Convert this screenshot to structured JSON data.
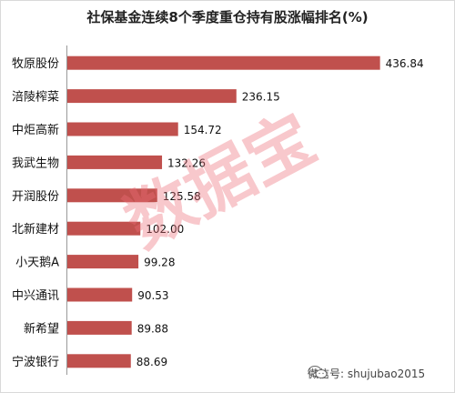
{
  "chart_data": {
    "type": "bar",
    "orientation": "horizontal",
    "title": "社保基金连续8个季度重仓持有股涨幅排名(%)",
    "categories": [
      "牧原股份",
      "涪陵榨菜",
      "中炬高新",
      "我武生物",
      "开润股份",
      "北新建材",
      "小天鹅A",
      "中兴通讯",
      "新希望",
      "宁波银行"
    ],
    "values": [
      436.84,
      236.15,
      154.72,
      132.26,
      125.58,
      102.0,
      99.28,
      90.53,
      89.88,
      88.69
    ],
    "value_labels": [
      "436.84",
      "236.15",
      "154.72",
      "132.26",
      "125.58",
      "102.00",
      "99.28",
      "90.53",
      "89.88",
      "88.69"
    ],
    "xlim": [
      0,
      450
    ],
    "grid": false,
    "bar_color": "#c0504d"
  },
  "watermark": "数据宝",
  "footer": {
    "wechat_label": "微信号: shujubao2015",
    "icon": "wechat-icon"
  }
}
